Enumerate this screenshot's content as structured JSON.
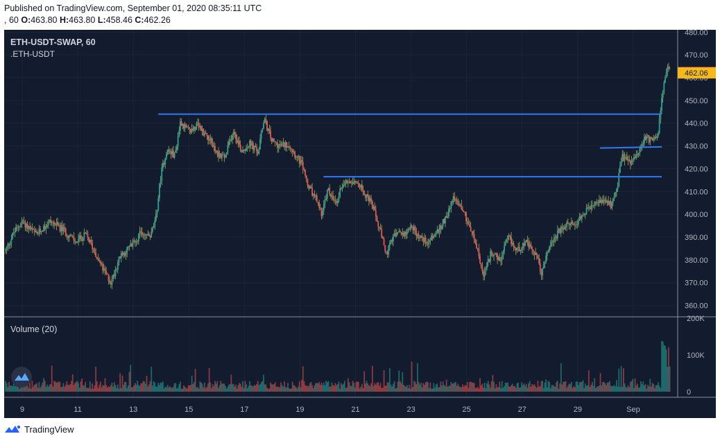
{
  "header": {
    "published": "Published on TradingView.com, September 01, 2020 08:35:11 UTC",
    "interval_prefix": ", 60",
    "ohlc": {
      "o_label": "O:",
      "o": "463.80",
      "h_label": "H:",
      "h": "463.80",
      "l_label": "L:",
      "l": "458.46",
      "c_label": "C:",
      "c": "462.26"
    }
  },
  "footer": {
    "brand": "TradingView"
  },
  "chart_data": {
    "type": "candlestick",
    "symbol": "ETH-USDT-SWAP, 60",
    "subtitle": ".ETH-USDT",
    "price_axis": {
      "ticks": [
        "480.00",
        "470.00",
        "460.00",
        "450.00",
        "440.00",
        "430.00",
        "420.00",
        "410.00",
        "400.00",
        "390.00",
        "380.00",
        "370.00",
        "360.00"
      ],
      "ylim": [
        355,
        481
      ]
    },
    "last_price": {
      "value": 462.26,
      "label": "462.26",
      "color": "#ef5350"
    },
    "second_price": {
      "value": 462.06,
      "label": "462.06",
      "color": "#f5b91a"
    },
    "time_axis": {
      "labels": [
        "9",
        "11",
        "13",
        "15",
        "17",
        "19",
        "21",
        "23",
        "25",
        "27",
        "29",
        "Sep"
      ],
      "day_values": [
        9,
        11,
        13,
        15,
        17,
        19,
        21,
        23,
        25,
        27,
        29,
        31
      ],
      "xlim": [
        8.35,
        32.6
      ]
    },
    "price_keypoints": [
      [
        8.4,
        384
      ],
      [
        8.7,
        392
      ],
      [
        9.0,
        397
      ],
      [
        9.5,
        391
      ],
      [
        10.0,
        397
      ],
      [
        10.5,
        393
      ],
      [
        10.9,
        388
      ],
      [
        11.3,
        391
      ],
      [
        11.6,
        384
      ],
      [
        11.9,
        376
      ],
      [
        12.2,
        370
      ],
      [
        12.5,
        381
      ],
      [
        12.9,
        386
      ],
      [
        13.3,
        392
      ],
      [
        13.6,
        390
      ],
      [
        13.8,
        397
      ],
      [
        14.0,
        418
      ],
      [
        14.2,
        428
      ],
      [
        14.5,
        426
      ],
      [
        14.7,
        441
      ],
      [
        15.0,
        436
      ],
      [
        15.3,
        439
      ],
      [
        15.7,
        434
      ],
      [
        16.0,
        427
      ],
      [
        16.3,
        425
      ],
      [
        16.6,
        437
      ],
      [
        16.9,
        428
      ],
      [
        17.2,
        431
      ],
      [
        17.5,
        427
      ],
      [
        17.7,
        442
      ],
      [
        18.0,
        432
      ],
      [
        18.3,
        430
      ],
      [
        18.6,
        431
      ],
      [
        18.9,
        425
      ],
      [
        19.1,
        421
      ],
      [
        19.3,
        412
      ],
      [
        19.6,
        406
      ],
      [
        19.8,
        400
      ],
      [
        20.0,
        411
      ],
      [
        20.3,
        404
      ],
      [
        20.5,
        413
      ],
      [
        20.8,
        415
      ],
      [
        21.0,
        415
      ],
      [
        21.3,
        410
      ],
      [
        21.6,
        404
      ],
      [
        21.9,
        392
      ],
      [
        22.1,
        382
      ],
      [
        22.4,
        391
      ],
      [
        22.8,
        392
      ],
      [
        23.0,
        395
      ],
      [
        23.3,
        390
      ],
      [
        23.6,
        388
      ],
      [
        24.0,
        393
      ],
      [
        24.3,
        400
      ],
      [
        24.5,
        407
      ],
      [
        24.8,
        404
      ],
      [
        25.1,
        395
      ],
      [
        25.4,
        384
      ],
      [
        25.6,
        372
      ],
      [
        25.9,
        384
      ],
      [
        26.2,
        379
      ],
      [
        26.5,
        390
      ],
      [
        26.8,
        384
      ],
      [
        27.1,
        388
      ],
      [
        27.5,
        382
      ],
      [
        27.7,
        374
      ],
      [
        28.0,
        387
      ],
      [
        28.3,
        392
      ],
      [
        28.6,
        395
      ],
      [
        29.0,
        397
      ],
      [
        29.3,
        401
      ],
      [
        29.6,
        404
      ],
      [
        29.9,
        406
      ],
      [
        30.2,
        404
      ],
      [
        30.4,
        411
      ],
      [
        30.6,
        425
      ],
      [
        30.9,
        423
      ],
      [
        31.2,
        426
      ],
      [
        31.4,
        434
      ],
      [
        31.7,
        432
      ],
      [
        31.9,
        437
      ],
      [
        32.1,
        458
      ],
      [
        32.25,
        465
      ],
      [
        32.35,
        462
      ]
    ],
    "horizontal_levels": [
      {
        "value": 444,
        "from_day": 13.9,
        "to_day": 32.7,
        "color": "#3179f5"
      },
      {
        "value": 416.5,
        "from_day": 19.85,
        "to_day": 32.6,
        "color": "#3179f5"
      },
      {
        "value": 429.1,
        "from_day": 29.8,
        "to_day": 33.3,
        "value_end": 429.6,
        "color": "#3179f5"
      }
    ],
    "volume": {
      "title": "Volume (20)",
      "ticks": [
        "200K",
        "100K",
        "0"
      ],
      "ylim": [
        0,
        200000
      ],
      "up_color": "#26a69a",
      "down_color": "#ef5350"
    },
    "colors": {
      "background": "#131b2e",
      "up": "#26a69a",
      "down": "#ef5350",
      "wick": "#c8e06e"
    }
  }
}
